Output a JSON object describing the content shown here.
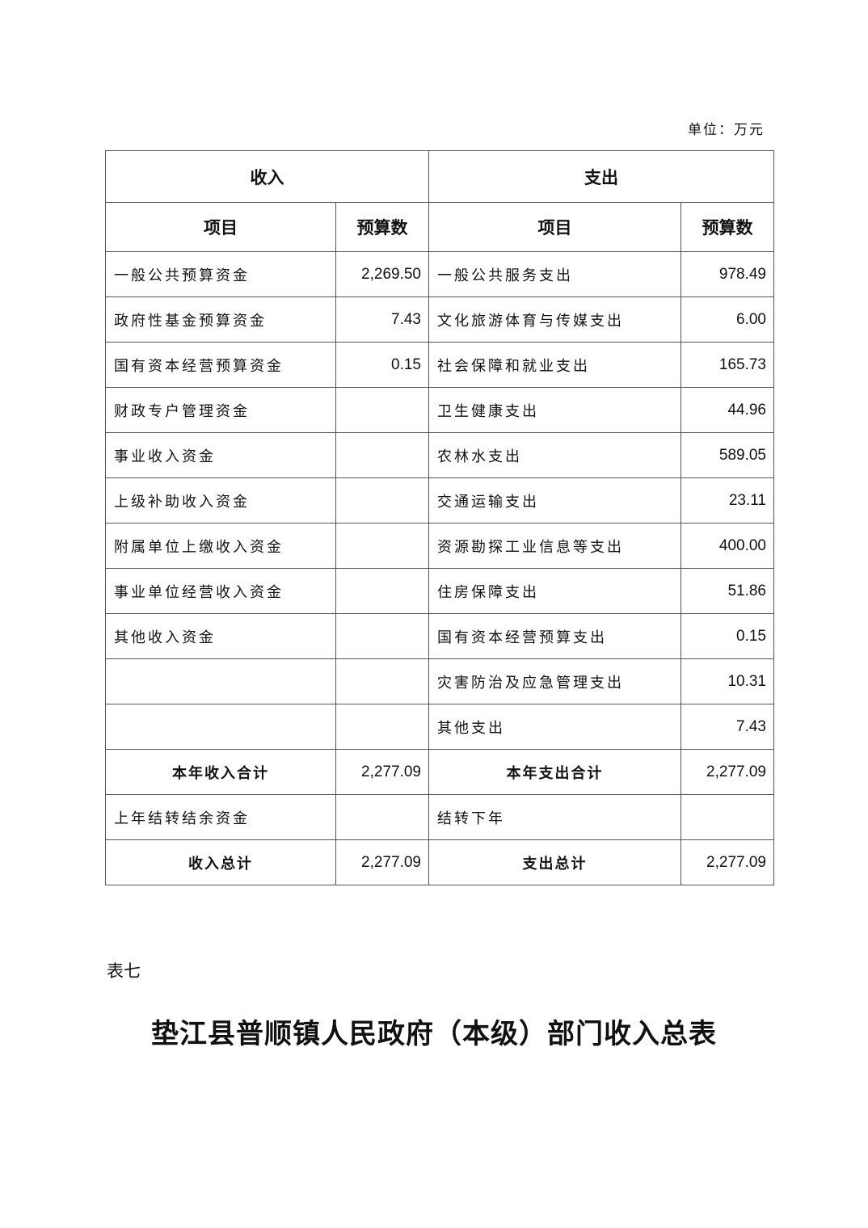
{
  "unit": "单位：万元",
  "header": {
    "income": "收入",
    "expense": "支出",
    "item": "项目",
    "budget": "预算数"
  },
  "rows": [
    {
      "income_item": "一般公共预算资金",
      "income_value": "2,269.50",
      "expense_item": "一般公共服务支出",
      "expense_value": "978.49"
    },
    {
      "income_item": "政府性基金预算资金",
      "income_value": "7.43",
      "expense_item": "文化旅游体育与传媒支出",
      "expense_value": "6.00"
    },
    {
      "income_item": "国有资本经营预算资金",
      "income_value": "0.15",
      "expense_item": "社会保障和就业支出",
      "expense_value": "165.73"
    },
    {
      "income_item": "财政专户管理资金",
      "income_value": "",
      "expense_item": "卫生健康支出",
      "expense_value": "44.96"
    },
    {
      "income_item": "事业收入资金",
      "income_value": "",
      "expense_item": "农林水支出",
      "expense_value": "589.05"
    },
    {
      "income_item": "上级补助收入资金",
      "income_value": "",
      "expense_item": "交通运输支出",
      "expense_value": "23.11"
    },
    {
      "income_item": "附属单位上缴收入资金",
      "income_value": "",
      "expense_item": "资源勘探工业信息等支出",
      "expense_value": "400.00"
    },
    {
      "income_item": "事业单位经营收入资金",
      "income_value": "",
      "expense_item": "住房保障支出",
      "expense_value": "51.86"
    },
    {
      "income_item": "其他收入资金",
      "income_value": "",
      "expense_item": "国有资本经营预算支出",
      "expense_value": "0.15"
    },
    {
      "income_item": "",
      "income_value": "",
      "expense_item": "灾害防治及应急管理支出",
      "expense_value": "10.31"
    },
    {
      "income_item": "",
      "income_value": "",
      "expense_item": "其他支出",
      "expense_value": "7.43"
    }
  ],
  "year_total": {
    "income_label": "本年收入合计",
    "income_value": "2,277.09",
    "expense_label": "本年支出合计",
    "expense_value": "2,277.09"
  },
  "carry": {
    "income_label": "上年结转结余资金",
    "income_value": "",
    "expense_label": "结转下年",
    "expense_value": ""
  },
  "grand_total": {
    "income_label": "收入总计",
    "income_value": "2,277.09",
    "expense_label": "支出总计",
    "expense_value": "2,277.09"
  },
  "next_table_label": "表七",
  "next_title": "垫江县普顺镇人民政府（本级）部门收入总表"
}
